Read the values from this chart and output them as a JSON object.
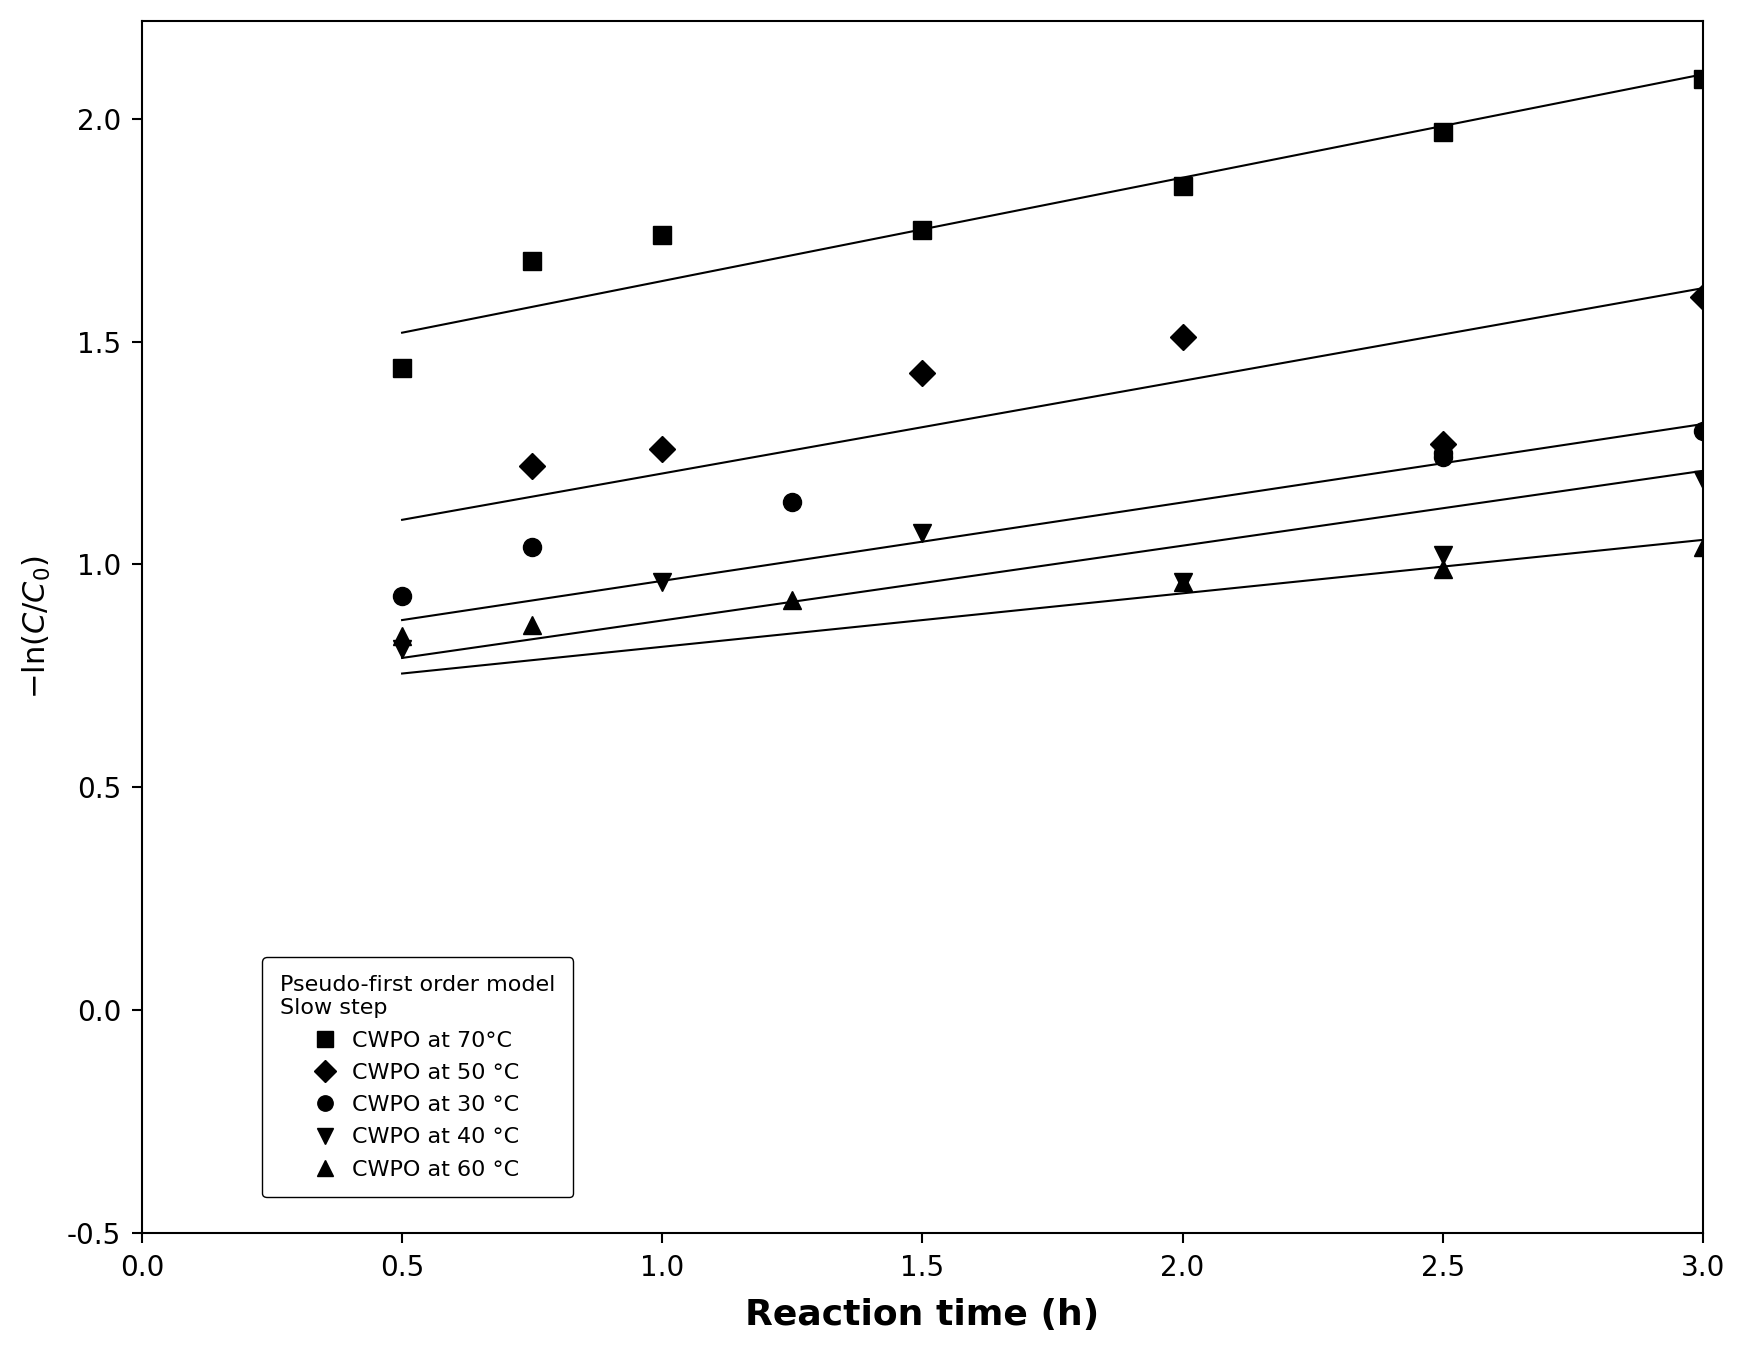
{
  "title": "",
  "xlabel": "Reaction time (h)",
  "ylabel": "-ln(C/C_0)",
  "xlim": [
    0.0,
    3.0
  ],
  "ylim": [
    -0.28,
    2.22
  ],
  "xticks": [
    0.0,
    0.5,
    1.0,
    1.5,
    2.0,
    2.5,
    3.0
  ],
  "yticks": [
    -0.5,
    0.0,
    0.5,
    1.0,
    1.5,
    2.0
  ],
  "series": [
    {
      "label": "CWPO at 70°C",
      "marker": "s",
      "x": [
        0.5,
        0.75,
        1.0,
        1.5,
        2.0,
        2.5,
        3.0
      ],
      "y": [
        1.44,
        1.68,
        1.74,
        1.75,
        1.85,
        1.97,
        2.09
      ],
      "fit_x": [
        0.5,
        3.0
      ],
      "fit_y": [
        1.52,
        2.1
      ]
    },
    {
      "label": "CWPO at 50 °C",
      "marker": "D",
      "x": [
        0.75,
        1.0,
        1.5,
        2.0,
        2.5,
        3.0
      ],
      "y": [
        1.22,
        1.26,
        1.43,
        1.51,
        1.27,
        1.6
      ],
      "fit_x": [
        0.5,
        3.0
      ],
      "fit_y": [
        1.1,
        1.62
      ]
    },
    {
      "label": "CWPO at 30 °C",
      "marker": "o",
      "x": [
        0.5,
        0.75,
        1.25,
        2.5,
        2.5,
        3.0
      ],
      "y": [
        0.93,
        1.04,
        1.14,
        1.24,
        1.25,
        1.3
      ],
      "fit_x": [
        0.5,
        3.0
      ],
      "fit_y": [
        0.875,
        1.315
      ]
    },
    {
      "label": "CWPO at 40 °C",
      "marker": "v",
      "x": [
        0.5,
        1.0,
        1.5,
        2.0,
        2.5,
        3.0
      ],
      "y": [
        0.81,
        0.96,
        1.07,
        0.96,
        1.02,
        1.19
      ],
      "fit_x": [
        0.5,
        3.0
      ],
      "fit_y": [
        0.79,
        1.21
      ]
    },
    {
      "label": "CWPO at 60 °C",
      "marker": "^",
      "x": [
        0.5,
        0.75,
        1.25,
        2.0,
        2.5,
        3.0
      ],
      "y": [
        0.84,
        0.865,
        0.92,
        0.96,
        0.99,
        1.04
      ],
      "fit_x": [
        0.5,
        3.0
      ],
      "fit_y": [
        0.755,
        1.055
      ]
    }
  ],
  "legend_title_line1": "Pseudo-first order model",
  "legend_title_line2": "Slow step",
  "color": "#000000",
  "background_color": "#ffffff",
  "markersize": 13,
  "linewidth": 1.5,
  "xlabel_fontsize": 26,
  "ylabel_fontsize": 22,
  "tick_fontsize": 20,
  "legend_fontsize": 16,
  "legend_title_fontsize": 16
}
